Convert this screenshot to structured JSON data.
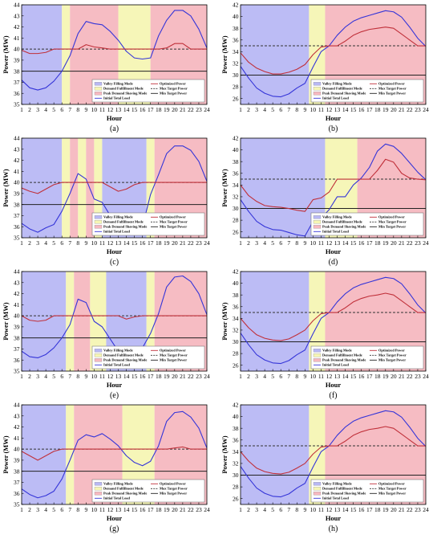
{
  "figure": {
    "title": ""
  },
  "legend_entries": {
    "valley": "Valley Filling Mode",
    "demand": "Demand Fulfillment Mode",
    "peak": "Peak Demand Shaving Mode",
    "initial": "Initial Total Load",
    "optimized": "Optimized Power",
    "max": "Max Target Power",
    "min": "Min Target Power"
  },
  "colors": {
    "valley": "#b8b8f4",
    "demand": "#f6f6b4",
    "peak": "#f6b8c0",
    "initial": "#3535d8",
    "optimized": "#c0303a",
    "max": "#333333",
    "min": "#222222"
  },
  "chart_data": [
    {
      "type": "line",
      "label": "(a)",
      "xlabel": "Hour",
      "ylabel": "Power (MW)",
      "xlim": [
        1,
        24
      ],
      "ylim": [
        35,
        44
      ],
      "yticks": [
        35,
        36,
        37,
        38,
        39,
        40,
        41,
        42,
        43,
        44
      ],
      "max_target": 40,
      "min_target": 38,
      "modes": [
        {
          "mode": "valley",
          "start": 1,
          "end": 6
        },
        {
          "mode": "demand",
          "start": 6,
          "end": 7
        },
        {
          "mode": "peak",
          "start": 7,
          "end": 13
        },
        {
          "mode": "demand",
          "start": 13,
          "end": 17
        },
        {
          "mode": "peak",
          "start": 17,
          "end": 24
        }
      ],
      "series": [
        {
          "name": "initial",
          "values": [
            37.2,
            36.5,
            36.3,
            36.5,
            37.1,
            38.0,
            39.4,
            41.4,
            42.5,
            42.3,
            42.2,
            41.6,
            40.8,
            39.8,
            39.2,
            39.1,
            39.2,
            41.2,
            42.6,
            43.5,
            43.5,
            43.0,
            41.8,
            40.1
          ]
        },
        {
          "name": "optimized",
          "values": [
            39.9,
            39.6,
            39.6,
            39.7,
            40.0,
            40.0,
            40.0,
            40.0,
            40.4,
            40.2,
            40.1,
            40.0,
            40.0,
            40.0,
            40.0,
            40.0,
            40.0,
            40.0,
            40.1,
            40.5,
            40.5,
            40.0,
            40.0,
            40.0
          ]
        }
      ]
    },
    {
      "type": "line",
      "label": "(b)",
      "xlabel": "Hour",
      "ylabel": "Power (MW)",
      "xlim": [
        1,
        24
      ],
      "ylim": [
        25,
        42
      ],
      "yticks": [
        26,
        28,
        30,
        32,
        34,
        36,
        38,
        40,
        42
      ],
      "max_target": 35,
      "min_target": 30,
      "modes": [
        {
          "mode": "valley",
          "start": 1,
          "end": 9.5
        },
        {
          "mode": "demand",
          "start": 9.5,
          "end": 11.5
        },
        {
          "mode": "peak",
          "start": 11.5,
          "end": 24
        }
      ],
      "series": [
        {
          "name": "initial",
          "values": [
            31.5,
            29.5,
            27.8,
            26.9,
            26.4,
            26.3,
            26.8,
            27.8,
            28.6,
            31.4,
            34.0,
            35.0,
            36.8,
            38.2,
            39.2,
            39.8,
            40.2,
            40.6,
            41.0,
            40.8,
            39.9,
            38.2,
            36.3,
            34.9
          ]
        },
        {
          "name": "optimized",
          "values": [
            33.8,
            32.2,
            31.2,
            30.6,
            30.2,
            30.2,
            30.5,
            31.0,
            31.8,
            33.5,
            34.8,
            35.0,
            35.0,
            35.8,
            36.8,
            37.4,
            37.8,
            38.0,
            38.2,
            38.0,
            37.0,
            36.0,
            35.0,
            35.0
          ]
        }
      ]
    },
    {
      "type": "line",
      "label": "(c)",
      "xlabel": "Hour",
      "ylabel": "Power (MW)",
      "xlim": [
        1,
        24
      ],
      "ylim": [
        35,
        44
      ],
      "yticks": [
        35,
        36,
        37,
        38,
        39,
        40,
        41,
        42,
        43,
        44
      ],
      "max_target": 40,
      "min_target": 38,
      "modes": [
        {
          "mode": "valley",
          "start": 1,
          "end": 6
        },
        {
          "mode": "demand",
          "start": 6,
          "end": 7
        },
        {
          "mode": "peak",
          "start": 7,
          "end": 8
        },
        {
          "mode": "demand",
          "start": 8,
          "end": 9
        },
        {
          "mode": "peak",
          "start": 9,
          "end": 10
        },
        {
          "mode": "demand",
          "start": 10,
          "end": 11
        },
        {
          "mode": "valley",
          "start": 11,
          "end": 16.5
        },
        {
          "mode": "demand",
          "start": 16.5,
          "end": 17.5
        },
        {
          "mode": "peak",
          "start": 17.5,
          "end": 24
        }
      ],
      "series": [
        {
          "name": "initial",
          "values": [
            36.3,
            35.8,
            35.5,
            35.9,
            36.2,
            37.4,
            39.0,
            40.8,
            40.3,
            38.5,
            38.2,
            37.0,
            36.0,
            35.9,
            35.9,
            36.0,
            38.9,
            40.7,
            42.6,
            43.3,
            43.3,
            42.9,
            41.9,
            40.1
          ]
        },
        {
          "name": "optimized",
          "values": [
            39.5,
            39.2,
            39.0,
            39.4,
            39.8,
            40.0,
            40.0,
            40.0,
            40.0,
            40.0,
            40.0,
            39.6,
            39.2,
            39.4,
            39.8,
            40.0,
            40.0,
            40.0,
            40.0,
            40.0,
            40.0,
            40.0,
            40.0,
            40.0
          ]
        }
      ]
    },
    {
      "type": "line",
      "label": "(d)",
      "xlabel": "Hour",
      "ylabel": "Power (MW)",
      "xlim": [
        1,
        24
      ],
      "ylim": [
        25,
        42
      ],
      "yticks": [
        26,
        28,
        30,
        32,
        34,
        36,
        38,
        40,
        42
      ],
      "max_target": 35,
      "min_target": 30,
      "modes": [
        {
          "mode": "valley",
          "start": 1,
          "end": 11.5
        },
        {
          "mode": "demand",
          "start": 11.5,
          "end": 15.5
        },
        {
          "mode": "peak",
          "start": 15.5,
          "end": 24
        }
      ],
      "series": [
        {
          "name": "initial",
          "values": [
            31.5,
            29.5,
            27.8,
            26.9,
            26.4,
            26.3,
            25.9,
            25.5,
            25.3,
            27.8,
            28.3,
            29.8,
            32.0,
            32.0,
            34.0,
            35.2,
            37.0,
            39.8,
            41.0,
            40.6,
            39.4,
            37.8,
            36.2,
            34.9
          ]
        },
        {
          "name": "optimized",
          "values": [
            34.0,
            32.2,
            31.2,
            30.5,
            30.3,
            30.2,
            30.0,
            29.7,
            29.5,
            31.5,
            31.8,
            32.8,
            35.0,
            35.0,
            35.0,
            35.0,
            35.0,
            36.5,
            38.4,
            37.9,
            36.0,
            35.2,
            35.0,
            34.9
          ]
        }
      ]
    },
    {
      "type": "line",
      "label": "(e)",
      "xlabel": "Hour",
      "ylabel": "Power (MW)",
      "xlim": [
        1,
        24
      ],
      "ylim": [
        35,
        44
      ],
      "yticks": [
        35,
        36,
        37,
        38,
        39,
        40,
        41,
        42,
        43,
        44
      ],
      "max_target": 40,
      "min_target": 38,
      "modes": [
        {
          "mode": "valley",
          "start": 1,
          "end": 6.5
        },
        {
          "mode": "demand",
          "start": 6.5,
          "end": 7.5
        },
        {
          "mode": "peak",
          "start": 7.5,
          "end": 9.5
        },
        {
          "mode": "demand",
          "start": 9.5,
          "end": 11.5
        },
        {
          "mode": "valley",
          "start": 11.5,
          "end": 16.5
        },
        {
          "mode": "demand",
          "start": 16.5,
          "end": 17.5
        },
        {
          "mode": "peak",
          "start": 17.5,
          "end": 24
        }
      ],
      "series": [
        {
          "name": "initial",
          "values": [
            36.8,
            36.3,
            36.2,
            36.5,
            37.1,
            38.0,
            39.2,
            41.5,
            41.2,
            39.5,
            39.0,
            37.9,
            36.8,
            36.6,
            36.9,
            37.1,
            38.4,
            40.2,
            42.6,
            43.5,
            43.6,
            43.1,
            42.0,
            40.1
          ]
        },
        {
          "name": "optimized",
          "values": [
            40.0,
            39.6,
            39.5,
            39.6,
            40.0,
            40.0,
            40.0,
            40.0,
            40.0,
            40.0,
            40.0,
            40.0,
            40.0,
            39.7,
            39.9,
            40.0,
            40.0,
            40.0,
            40.0,
            40.0,
            40.0,
            40.0,
            40.0,
            40.0
          ]
        }
      ]
    },
    {
      "type": "line",
      "label": "(f)",
      "xlabel": "Hour",
      "ylabel": "Power (MW)",
      "xlim": [
        1,
        24
      ],
      "ylim": [
        25,
        42
      ],
      "yticks": [
        26,
        28,
        30,
        32,
        34,
        36,
        38,
        40,
        42
      ],
      "max_target": 35,
      "min_target": 30,
      "modes": [
        {
          "mode": "valley",
          "start": 1,
          "end": 9.5
        },
        {
          "mode": "demand",
          "start": 9.5,
          "end": 11.5
        },
        {
          "mode": "peak",
          "start": 11.5,
          "end": 24
        }
      ],
      "series": [
        {
          "name": "initial",
          "values": [
            31.5,
            29.5,
            27.8,
            26.9,
            26.4,
            26.3,
            26.8,
            27.8,
            28.6,
            31.4,
            34.0,
            35.0,
            36.8,
            38.2,
            39.2,
            39.8,
            40.2,
            40.6,
            41.0,
            40.8,
            39.9,
            38.2,
            36.3,
            34.9
          ]
        },
        {
          "name": "optimized",
          "values": [
            34.0,
            32.4,
            31.2,
            30.6,
            30.3,
            30.2,
            30.5,
            31.2,
            32.0,
            33.6,
            34.8,
            35.0,
            35.0,
            35.8,
            36.8,
            37.4,
            37.8,
            38.0,
            38.3,
            38.0,
            37.0,
            36.0,
            35.0,
            35.0
          ]
        }
      ]
    },
    {
      "type": "line",
      "label": "(g)",
      "xlabel": "Hour",
      "ylabel": "Power (MW)",
      "xlim": [
        1,
        24
      ],
      "ylim": [
        35,
        44
      ],
      "yticks": [
        35,
        36,
        37,
        38,
        39,
        40,
        41,
        42,
        43,
        44
      ],
      "max_target": 40,
      "min_target": 38,
      "modes": [
        {
          "mode": "valley",
          "start": 1,
          "end": 6.5
        },
        {
          "mode": "demand",
          "start": 6.5,
          "end": 7.5
        },
        {
          "mode": "peak",
          "start": 7.5,
          "end": 13.5
        },
        {
          "mode": "demand",
          "start": 13.5,
          "end": 17.5
        },
        {
          "mode": "peak",
          "start": 17.5,
          "end": 24
        }
      ],
      "series": [
        {
          "name": "initial",
          "values": [
            36.4,
            35.9,
            35.6,
            35.8,
            36.2,
            37.3,
            39.0,
            40.8,
            41.3,
            41.1,
            41.4,
            40.9,
            40.3,
            39.4,
            38.8,
            38.5,
            38.9,
            40.3,
            42.5,
            43.3,
            43.4,
            42.9,
            41.9,
            40.1
          ]
        },
        {
          "name": "optimized",
          "values": [
            39.8,
            39.4,
            39.0,
            39.4,
            39.8,
            40.0,
            40.0,
            40.0,
            40.0,
            40.0,
            40.0,
            40.0,
            40.0,
            40.0,
            40.0,
            40.0,
            40.0,
            40.0,
            40.0,
            40.1,
            40.2,
            40.0,
            40.0,
            40.0
          ]
        }
      ]
    },
    {
      "type": "line",
      "label": "(h)",
      "xlabel": "Hour",
      "ylabel": "Power (MW)",
      "xlim": [
        1,
        24
      ],
      "ylim": [
        25,
        42
      ],
      "yticks": [
        26,
        28,
        30,
        32,
        34,
        36,
        38,
        40,
        42
      ],
      "max_target": 35,
      "min_target": 30,
      "modes": [
        {
          "mode": "valley",
          "start": 1,
          "end": 9.5
        },
        {
          "mode": "demand",
          "start": 9.5,
          "end": 11.5
        },
        {
          "mode": "peak",
          "start": 11.5,
          "end": 24
        }
      ],
      "series": [
        {
          "name": "initial",
          "values": [
            31.5,
            29.5,
            27.8,
            26.9,
            26.4,
            26.3,
            26.8,
            27.8,
            28.6,
            31.4,
            34.0,
            35.0,
            36.8,
            38.2,
            39.2,
            39.8,
            40.2,
            40.6,
            41.0,
            40.8,
            39.9,
            38.2,
            36.3,
            34.9
          ]
        },
        {
          "name": "optimized",
          "values": [
            34.0,
            32.4,
            31.2,
            30.6,
            30.3,
            30.2,
            30.5,
            31.2,
            32.0,
            33.6,
            34.8,
            35.0,
            35.0,
            35.8,
            36.8,
            37.4,
            37.8,
            38.0,
            38.3,
            38.0,
            37.0,
            36.0,
            35.0,
            35.0
          ]
        }
      ]
    }
  ]
}
